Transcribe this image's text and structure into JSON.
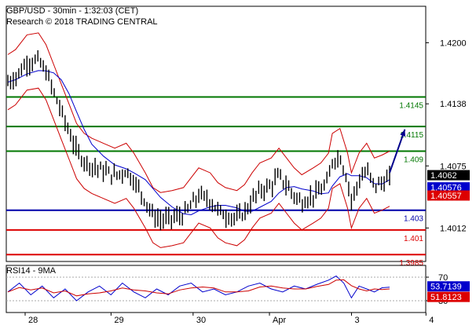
{
  "header": {
    "title": "GBP/USD - 30min - 1:32:03 (CET)",
    "subtitle": "Research © 2018 TRADING CENTRAL"
  },
  "chart_data": {
    "type": "candlestick",
    "instrument": "GBP/USD",
    "timeframe": "30min",
    "price_axis": {
      "ylim": [
        1.3978,
        1.4237
      ],
      "ticks": [
        "1.4200",
        "1.4138",
        "1.4075",
        "1.4012"
      ],
      "tick_values": [
        1.42,
        1.4138,
        1.4075,
        1.4012
      ]
    },
    "x_axis": {
      "labels": [
        "28",
        "29",
        "30",
        "Apr",
        "3",
        "4"
      ],
      "label_positions": [
        0.0,
        0.225,
        0.44,
        0.64,
        0.855,
        1.05
      ]
    },
    "levels": [
      {
        "label": "1.4145",
        "value": 1.4145,
        "color": "#007700"
      },
      {
        "label": "1.4115",
        "value": 1.4115,
        "color": "#007700"
      },
      {
        "label": "1.409",
        "value": 1.409,
        "color": "#007700"
      },
      {
        "label": "1.403",
        "value": 1.403,
        "color": "#0000aa"
      },
      {
        "label": "1.401",
        "value": 1.401,
        "color": "#dd0000"
      },
      {
        "label": "1.3985",
        "value": 1.3985,
        "color": "#dd0000"
      }
    ],
    "current_labels": [
      {
        "label": "1.4062",
        "value": 1.4062,
        "bg": "#000000",
        "fg": "#ffffff"
      },
      {
        "label": "1.40576",
        "value": 1.40576,
        "bg": "#0000cc",
        "fg": "#ffffff"
      },
      {
        "label": "1.40557",
        "value": 1.40557,
        "bg": "#dd0000",
        "fg": "#ffffff"
      }
    ],
    "price_path": [
      [
        0.0,
        1.416
      ],
      [
        0.02,
        1.4165
      ],
      [
        0.05,
        1.418
      ],
      [
        0.08,
        1.4182
      ],
      [
        0.1,
        1.417
      ],
      [
        0.12,
        1.415
      ],
      [
        0.14,
        1.413
      ],
      [
        0.16,
        1.411
      ],
      [
        0.18,
        1.409
      ],
      [
        0.2,
        1.408
      ],
      [
        0.22,
        1.4075
      ],
      [
        0.25,
        1.407
      ],
      [
        0.28,
        1.4065
      ],
      [
        0.31,
        1.407
      ],
      [
        0.33,
        1.406
      ],
      [
        0.36,
        1.404
      ],
      [
        0.38,
        1.4025
      ],
      [
        0.4,
        1.402
      ],
      [
        0.43,
        1.4022
      ],
      [
        0.46,
        1.4025
      ],
      [
        0.48,
        1.4035
      ],
      [
        0.5,
        1.4045
      ],
      [
        0.53,
        1.404
      ],
      [
        0.55,
        1.403
      ],
      [
        0.57,
        1.4025
      ],
      [
        0.6,
        1.4022
      ],
      [
        0.62,
        1.4028
      ],
      [
        0.64,
        1.404
      ],
      [
        0.66,
        1.405
      ],
      [
        0.69,
        1.4055
      ],
      [
        0.71,
        1.4065
      ],
      [
        0.73,
        1.4055
      ],
      [
        0.75,
        1.4045
      ],
      [
        0.77,
        1.4038
      ],
      [
        0.8,
        1.4045
      ],
      [
        0.82,
        1.405
      ],
      [
        0.84,
        1.406
      ],
      [
        0.85,
        1.408
      ],
      [
        0.87,
        1.4085
      ],
      [
        0.89,
        1.406
      ],
      [
        0.9,
        1.404
      ],
      [
        0.92,
        1.406
      ],
      [
        0.94,
        1.407
      ],
      [
        0.96,
        1.4055
      ],
      [
        0.98,
        1.4058
      ],
      [
        1.0,
        1.4062
      ]
    ],
    "arrow": {
      "from": [
        1.0,
        1.4068
      ],
      "to": [
        1.04,
        1.4112
      ],
      "color": "#00008b"
    },
    "rsi": {
      "title": "RSI14 - 9MA",
      "ticks": [
        "70",
        "30"
      ],
      "tick_values": [
        70,
        30
      ],
      "ylim": [
        10,
        90
      ],
      "current_labels": [
        {
          "label": "53.7139",
          "value": 53.7139,
          "bg": "#0000cc",
          "fg": "#ffffff"
        },
        {
          "label": "51.8123",
          "value": 51.8123,
          "bg": "#dd0000",
          "fg": "#ffffff"
        }
      ],
      "path": [
        [
          0.0,
          45
        ],
        [
          0.03,
          60
        ],
        [
          0.06,
          40
        ],
        [
          0.09,
          55
        ],
        [
          0.12,
          35
        ],
        [
          0.15,
          50
        ],
        [
          0.18,
          30
        ],
        [
          0.21,
          45
        ],
        [
          0.24,
          55
        ],
        [
          0.27,
          40
        ],
        [
          0.3,
          60
        ],
        [
          0.33,
          45
        ],
        [
          0.36,
          35
        ],
        [
          0.39,
          50
        ],
        [
          0.42,
          40
        ],
        [
          0.45,
          55
        ],
        [
          0.48,
          60
        ],
        [
          0.51,
          45
        ],
        [
          0.54,
          50
        ],
        [
          0.57,
          40
        ],
        [
          0.6,
          45
        ],
        [
          0.63,
          55
        ],
        [
          0.66,
          60
        ],
        [
          0.69,
          50
        ],
        [
          0.72,
          45
        ],
        [
          0.75,
          55
        ],
        [
          0.78,
          50
        ],
        [
          0.81,
          58
        ],
        [
          0.84,
          65
        ],
        [
          0.86,
          72
        ],
        [
          0.88,
          60
        ],
        [
          0.9,
          35
        ],
        [
          0.92,
          55
        ],
        [
          0.94,
          50
        ],
        [
          0.96,
          45
        ],
        [
          0.98,
          52
        ],
        [
          1.0,
          53
        ]
      ]
    }
  }
}
